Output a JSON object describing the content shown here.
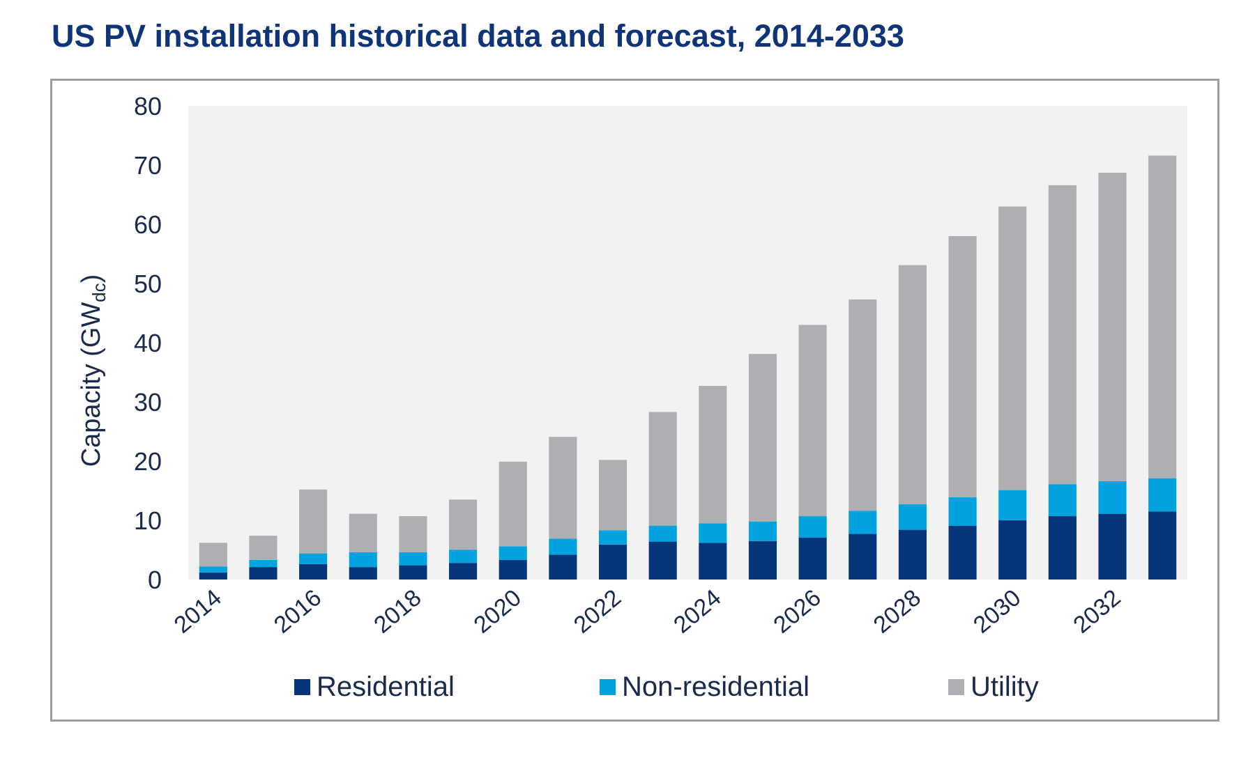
{
  "title": "US PV installation historical data and forecast, 2014-2033",
  "colors": {
    "title": "#0f3478",
    "plot_background": "#f2f2f2",
    "residential": "#06357a",
    "non_residential": "#00a3e0",
    "utility": "#aeafb2",
    "text": "#1a2a4a"
  },
  "chart_data": {
    "type": "bar",
    "stacked": true,
    "title": "US PV installation historical data and forecast, 2014-2033",
    "xlabel": "",
    "ylabel": "Capacity (GW",
    "ylabel_subscript": "dc",
    "ylabel_close": ")",
    "ylim": [
      0,
      80
    ],
    "yticks": [
      0,
      10,
      20,
      30,
      40,
      50,
      60,
      70,
      80
    ],
    "categories": [
      2014,
      2015,
      2016,
      2017,
      2018,
      2019,
      2020,
      2021,
      2022,
      2023,
      2024,
      2025,
      2026,
      2027,
      2028,
      2029,
      2030,
      2031,
      2032,
      2033
    ],
    "xtick_labels": [
      "2014",
      "2016",
      "2018",
      "2020",
      "2022",
      "2024",
      "2026",
      "2028",
      "2030",
      "2032"
    ],
    "grid": false,
    "legend_position": "bottom",
    "series": [
      {
        "name": "Residential",
        "color_key": "residential",
        "values": [
          1.2,
          2.1,
          2.6,
          2.1,
          2.4,
          2.8,
          3.3,
          4.2,
          5.9,
          6.4,
          6.2,
          6.5,
          7.1,
          7.7,
          8.4,
          9.1,
          10.0,
          10.7,
          11.1,
          11.5
        ]
      },
      {
        "name": "Non-residential",
        "color_key": "non_residential",
        "values": [
          1.0,
          1.2,
          1.8,
          2.5,
          2.2,
          2.2,
          2.3,
          2.7,
          2.4,
          2.7,
          3.3,
          3.3,
          3.6,
          3.9,
          4.3,
          4.8,
          5.1,
          5.4,
          5.5,
          5.6
        ]
      },
      {
        "name": "Utility",
        "color_key": "utility",
        "values": [
          4.0,
          4.1,
          10.8,
          6.5,
          6.1,
          8.5,
          14.3,
          17.2,
          11.9,
          19.2,
          23.2,
          28.3,
          32.3,
          35.7,
          40.4,
          44.1,
          47.9,
          50.5,
          52.1,
          54.5
        ]
      }
    ],
    "totals": [
      6.2,
      7.4,
      15.2,
      11.1,
      10.7,
      13.5,
      19.9,
      24.1,
      20.2,
      28.3,
      32.7,
      38.1,
      43.0,
      47.3,
      53.1,
      58.0,
      63.0,
      66.6,
      68.7,
      71.6
    ]
  }
}
